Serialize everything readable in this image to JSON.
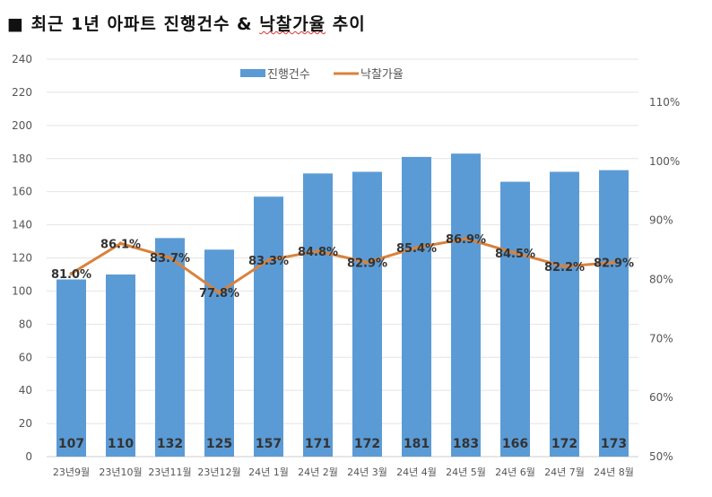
{
  "title": {
    "prefix": "■ 최근 1년 아파트 진행건수 & ",
    "underlined": "낙찰가율",
    "suffix": " 추이"
  },
  "chart_data": {
    "type": "bar+line",
    "categories": [
      "23년9월",
      "23년10월",
      "23년11월",
      "23년12월",
      "24년 1월",
      "24년 2월",
      "24년 3월",
      "24년 4월",
      "24년 5월",
      "24년 6월",
      "24년 7월",
      "24년 8월"
    ],
    "series": [
      {
        "name": "진행건수",
        "type": "bar",
        "axis": "left",
        "color": "#5B9BD5",
        "values": [
          107,
          110,
          132,
          125,
          157,
          171,
          172,
          181,
          183,
          166,
          172,
          173
        ]
      },
      {
        "name": "낙찰가율",
        "type": "line",
        "axis": "right",
        "color": "#D9823B",
        "values": [
          81.0,
          86.1,
          83.7,
          77.8,
          83.3,
          84.8,
          82.9,
          85.4,
          86.9,
          84.5,
          82.2,
          82.9
        ]
      }
    ],
    "left_axis": {
      "ylim": [
        0,
        240
      ],
      "ticks": [
        0,
        20,
        40,
        60,
        80,
        100,
        120,
        140,
        160,
        180,
        200,
        220,
        240
      ]
    },
    "right_axis": {
      "ylim": [
        50,
        117.3
      ],
      "ticks": [
        "50%",
        "60%",
        "70%",
        "80%",
        "90%",
        "100%",
        "110%"
      ]
    },
    "grid": true,
    "legend": "top-center"
  }
}
